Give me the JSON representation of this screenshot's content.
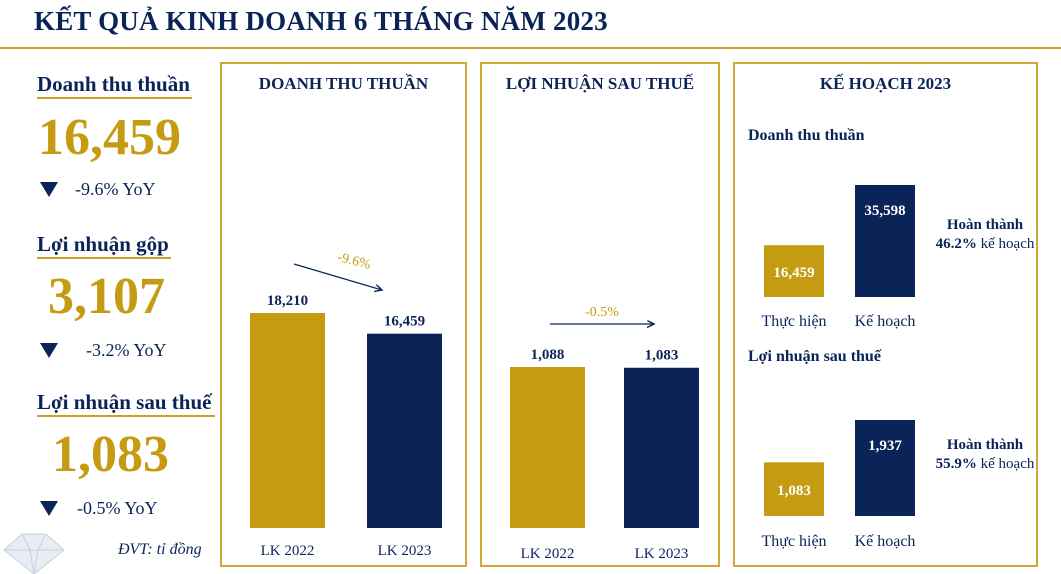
{
  "title": "KẾT QUẢ KINH DOANH 6 THÁNG NĂM 2023",
  "kpis": [
    {
      "label": "Doanh thu thuần",
      "value": "16,459",
      "change": "-9.6% YoY"
    },
    {
      "label": "Lợi nhuận gộp",
      "value": "3,107",
      "change": "-3.2% YoY"
    },
    {
      "label": "Lợi nhuận sau thuế",
      "value": "1,083",
      "change": "-0.5% YoY"
    }
  ],
  "unit_note": "ĐVT: tỉ đồng",
  "colors": {
    "gold": "#c59b12",
    "navy": "#0b2458",
    "border": "#cfa83a"
  },
  "chart_data": [
    {
      "type": "bar",
      "title": "DOANH THU THUẦN",
      "categories": [
        "LK 2022",
        "LK 2023"
      ],
      "values": [
        18210,
        16459
      ],
      "value_labels": [
        "18,210",
        "16,459"
      ],
      "change_label": "-9.6%",
      "ylim": [
        0,
        20000
      ]
    },
    {
      "type": "bar",
      "title": "LỢI NHUẬN SAU THUẾ",
      "categories": [
        "LK 2022",
        "LK 2023"
      ],
      "values": [
        1088,
        1083
      ],
      "value_labels": [
        "1,088",
        "1,083"
      ],
      "change_label": "-0.5%",
      "ylim": [
        0,
        2000
      ]
    },
    {
      "type": "bar",
      "title": "KẾ HOẠCH 2023",
      "subcharts": [
        {
          "subtitle": "Doanh thu thuần",
          "categories": [
            "Thực hiện",
            "Kế hoạch"
          ],
          "values": [
            16459,
            35598
          ],
          "value_labels": [
            "16,459",
            "35,598"
          ],
          "completion_prefix": "Hoàn thành",
          "completion_pct": "46.2%",
          "completion_suffix": "kế hoạch"
        },
        {
          "subtitle": "Lợi nhuận sau thuế",
          "categories": [
            "Thực hiện",
            "Kế hoạch"
          ],
          "values": [
            1083,
            1937
          ],
          "value_labels": [
            "1,083",
            "1,937"
          ],
          "completion_prefix": "Hoàn thành",
          "completion_pct": "55.9%",
          "completion_suffix": "kế hoạch"
        }
      ]
    }
  ]
}
